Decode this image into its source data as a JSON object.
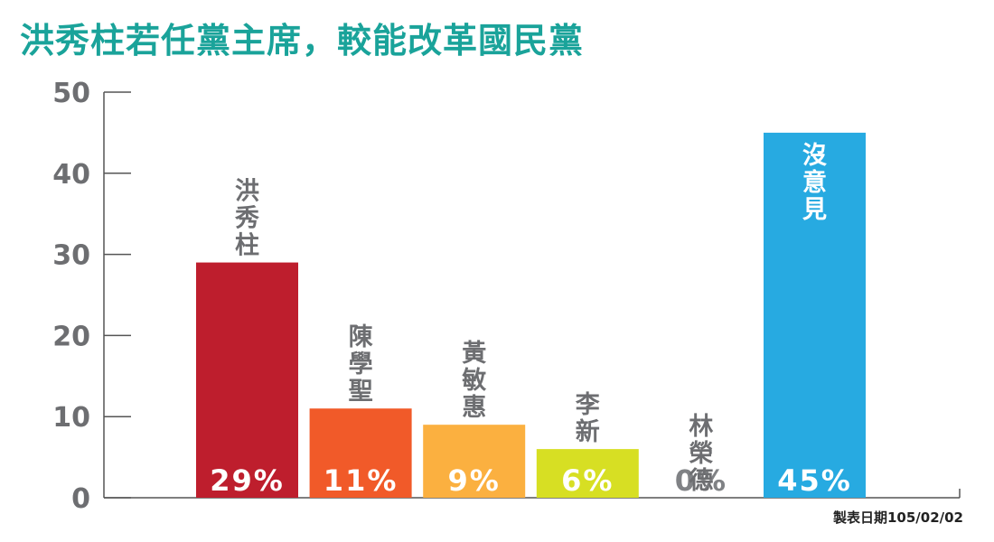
{
  "chart_data": {
    "type": "bar",
    "title": "洪秀柱若任黨主席，較能改革國民黨",
    "xlabel": "",
    "ylabel": "",
    "ylim": [
      0,
      50
    ],
    "yticks": [
      0,
      10,
      20,
      30,
      40,
      50
    ],
    "categories": [
      "洪秀柱",
      "陳學聖",
      "黃敏惠",
      "李新",
      "林榮德",
      "沒意見"
    ],
    "values": [
      29,
      11,
      9,
      6,
      0,
      45
    ],
    "value_labels": [
      "29%",
      "11%",
      "9%",
      "6%",
      "0%",
      "45%"
    ],
    "colors": [
      "#be1e2d",
      "#f15a29",
      "#fbb040",
      "#d7df23",
      "#ffffff",
      "#27aae1"
    ],
    "grid": false,
    "legend": "none"
  },
  "footer": {
    "note": "製表日期105/02/02"
  }
}
